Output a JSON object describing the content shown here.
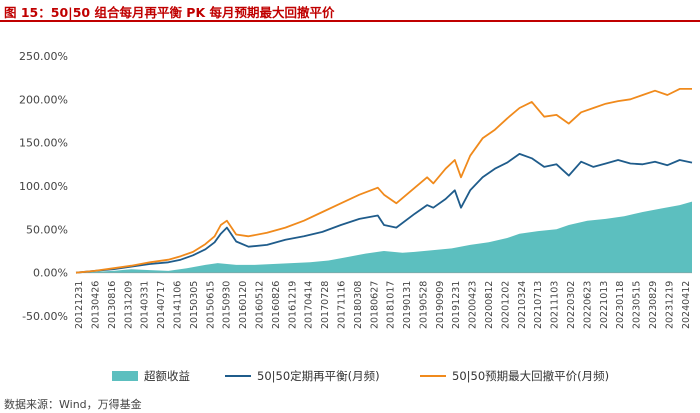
{
  "header": {
    "title": "图 15：50|50 组合每月再平衡 PK 每月预期最大回撤平价"
  },
  "source": "数据来源：Wind，万得基金",
  "chart_data": {
    "type": "line",
    "title": "50|50 组合每月再平衡 PK 每月预期最大回撤平价",
    "xlabel": "",
    "ylabel": "",
    "ylim": [
      -0.5,
      2.5
    ],
    "yticks": [
      -0.5,
      0.0,
      0.5,
      1.0,
      1.5,
      2.0,
      2.5
    ],
    "ytick_labels": [
      "-50.00%",
      "0.00%",
      "50.00%",
      "100.00%",
      "150.00%",
      "200.00%",
      "250.00%"
    ],
    "x_tick_labels": [
      "20121231",
      "20130426",
      "20130816",
      "20131209",
      "20140331",
      "20140717",
      "20141106",
      "20150305",
      "20150615",
      "20150930",
      "20160120",
      "20160512",
      "20160826",
      "20161219",
      "20170414",
      "20170728",
      "20171116",
      "20180308",
      "20180627",
      "20181017",
      "20190131",
      "20190528",
      "20190909",
      "20191231",
      "20200423",
      "20200812",
      "20201202",
      "20210324",
      "20210713",
      "20211103",
      "20220302",
      "20220623",
      "20221013",
      "20230118",
      "20230515",
      "20230829",
      "20231219",
      "20240412"
    ],
    "series": [
      {
        "name": "超额收益",
        "type": "area",
        "color": "#5cbfbf",
        "x": [
          0,
          0.03,
          0.06,
          0.09,
          0.12,
          0.15,
          0.18,
          0.21,
          0.23,
          0.26,
          0.29,
          0.32,
          0.35,
          0.38,
          0.41,
          0.44,
          0.47,
          0.5,
          0.53,
          0.55,
          0.58,
          0.61,
          0.64,
          0.67,
          0.7,
          0.72,
          0.75,
          0.78,
          0.8,
          0.83,
          0.86,
          0.89,
          0.92,
          0.95,
          0.98,
          1.0
        ],
        "values": [
          0.0,
          0.01,
          0.02,
          0.04,
          0.03,
          0.02,
          0.05,
          0.09,
          0.11,
          0.09,
          0.09,
          0.1,
          0.11,
          0.12,
          0.14,
          0.18,
          0.22,
          0.25,
          0.23,
          0.24,
          0.26,
          0.28,
          0.32,
          0.35,
          0.4,
          0.45,
          0.48,
          0.5,
          0.55,
          0.6,
          0.62,
          0.65,
          0.7,
          0.74,
          0.78,
          0.82
        ]
      },
      {
        "name": "50|50定期再平衡(月频)",
        "type": "line",
        "color": "#1f5c8b",
        "x": [
          0,
          0.03,
          0.06,
          0.09,
          0.12,
          0.15,
          0.17,
          0.19,
          0.21,
          0.225,
          0.235,
          0.245,
          0.26,
          0.28,
          0.31,
          0.34,
          0.37,
          0.4,
          0.43,
          0.46,
          0.49,
          0.5,
          0.52,
          0.55,
          0.57,
          0.58,
          0.6,
          0.615,
          0.625,
          0.64,
          0.66,
          0.68,
          0.7,
          0.72,
          0.74,
          0.76,
          0.78,
          0.8,
          0.82,
          0.84,
          0.86,
          0.88,
          0.9,
          0.92,
          0.94,
          0.96,
          0.98,
          1.0
        ],
        "values": [
          0.0,
          0.02,
          0.04,
          0.07,
          0.1,
          0.12,
          0.15,
          0.2,
          0.27,
          0.35,
          0.45,
          0.52,
          0.36,
          0.3,
          0.32,
          0.38,
          0.42,
          0.47,
          0.55,
          0.62,
          0.66,
          0.55,
          0.52,
          0.68,
          0.78,
          0.75,
          0.85,
          0.95,
          0.75,
          0.95,
          1.1,
          1.2,
          1.27,
          1.37,
          1.32,
          1.22,
          1.25,
          1.12,
          1.28,
          1.22,
          1.26,
          1.3,
          1.26,
          1.25,
          1.28,
          1.24,
          1.3,
          1.27
        ]
      },
      {
        "name": "50|50预期最大回撤平价(月频)",
        "type": "line",
        "color": "#f08a1c",
        "x": [
          0,
          0.03,
          0.06,
          0.09,
          0.12,
          0.15,
          0.17,
          0.19,
          0.21,
          0.225,
          0.235,
          0.245,
          0.26,
          0.28,
          0.31,
          0.34,
          0.37,
          0.4,
          0.43,
          0.46,
          0.49,
          0.5,
          0.52,
          0.55,
          0.57,
          0.58,
          0.6,
          0.615,
          0.625,
          0.64,
          0.66,
          0.68,
          0.7,
          0.72,
          0.74,
          0.76,
          0.78,
          0.8,
          0.82,
          0.84,
          0.86,
          0.88,
          0.9,
          0.92,
          0.94,
          0.96,
          0.98,
          1.0
        ],
        "values": [
          0.0,
          0.02,
          0.05,
          0.08,
          0.12,
          0.15,
          0.19,
          0.24,
          0.33,
          0.42,
          0.55,
          0.6,
          0.44,
          0.42,
          0.46,
          0.52,
          0.6,
          0.7,
          0.8,
          0.9,
          0.98,
          0.9,
          0.8,
          0.98,
          1.1,
          1.03,
          1.2,
          1.3,
          1.1,
          1.35,
          1.55,
          1.65,
          1.78,
          1.9,
          1.97,
          1.8,
          1.82,
          1.72,
          1.85,
          1.9,
          1.95,
          1.98,
          2.0,
          2.05,
          2.1,
          2.05,
          2.12,
          2.12
        ]
      }
    ],
    "legend_position": "bottom",
    "grid": false
  },
  "legend": {
    "item1": "超额收益",
    "item2": "50|50定期再平衡(月频)",
    "item3": "50|50预期最大回撤平价(月频)"
  }
}
